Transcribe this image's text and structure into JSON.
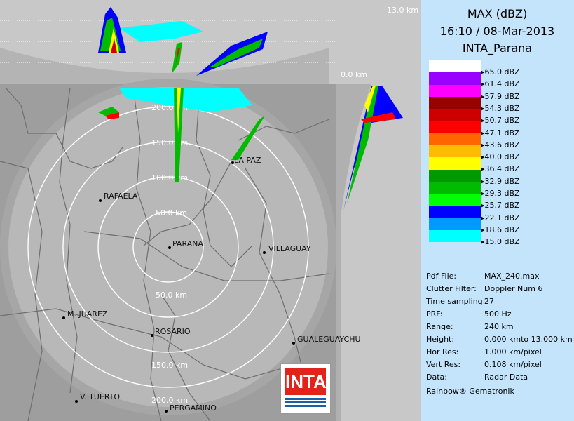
{
  "title": {
    "product": "MAX (dBZ)",
    "datetime": "16:10 / 08-Mar-2013",
    "site": "INTA_Parana"
  },
  "legend": [
    {
      "label": "65.0 dBZ",
      "color": "#ffffff"
    },
    {
      "label": "61.4 dBZ",
      "color": "#9900ff"
    },
    {
      "label": "57.9 dBZ",
      "color": "#ff00ff"
    },
    {
      "label": "54.3 dBZ",
      "color": "#990000"
    },
    {
      "label": "50.7 dBZ",
      "color": "#cc0000"
    },
    {
      "label": "47.1 dBZ",
      "color": "#ff0000"
    },
    {
      "label": "43.6 dBZ",
      "color": "#ff6600"
    },
    {
      "label": "40.0 dBZ",
      "color": "#ffbb00"
    },
    {
      "label": "36.4 dBZ",
      "color": "#ffff00"
    },
    {
      "label": "32.9 dBZ",
      "color": "#009900"
    },
    {
      "label": "29.3 dBZ",
      "color": "#00bb00"
    },
    {
      "label": "25.7 dBZ",
      "color": "#00ff00"
    },
    {
      "label": "22.1 dBZ",
      "color": "#0000ff"
    },
    {
      "label": "18.6 dBZ",
      "color": "#0099ff"
    },
    {
      "label": "15.0 dBZ",
      "color": "#00ffff"
    }
  ],
  "info": [
    {
      "key": "Pdf File:",
      "value": "MAX_240.max"
    },
    {
      "key": "Clutter Filter:",
      "value": "Doppler Num 6"
    },
    {
      "key": "Time sampling:",
      "value": "27"
    },
    {
      "key": "PRF:",
      "value": "500 Hz"
    },
    {
      "key": "Range:",
      "value": "240 km"
    },
    {
      "key": "Height:",
      "value": "0.000 kmto 13.000 km"
    },
    {
      "key": "Hor Res:",
      "value": "1.000 km/pixel"
    },
    {
      "key": "Vert Res:",
      "value": "0.108 km/pixel"
    },
    {
      "key": "Data:",
      "value": "Radar Data"
    }
  ],
  "credit": "Rainbow® Gematronik",
  "heights": {
    "top": "13.0 km",
    "bottom": "0.0 km"
  },
  "rings": [
    "50.0 km",
    "100.0 km",
    "150.0 km",
    "200.0 km"
  ],
  "rings_south": [
    "50.0 km",
    "150.0 km",
    "200.0 km"
  ],
  "cities": [
    {
      "name": "LA PAZ"
    },
    {
      "name": "RAFAELA"
    },
    {
      "name": "PARANA"
    },
    {
      "name": "VILLAGUAY"
    },
    {
      "name": "M. JUAREZ"
    },
    {
      "name": "ROSARIO"
    },
    {
      "name": "GUALEGUAYCHU"
    },
    {
      "name": "V. TUERTO"
    },
    {
      "name": "PERGAMINO"
    }
  ],
  "logo": "INTA"
}
